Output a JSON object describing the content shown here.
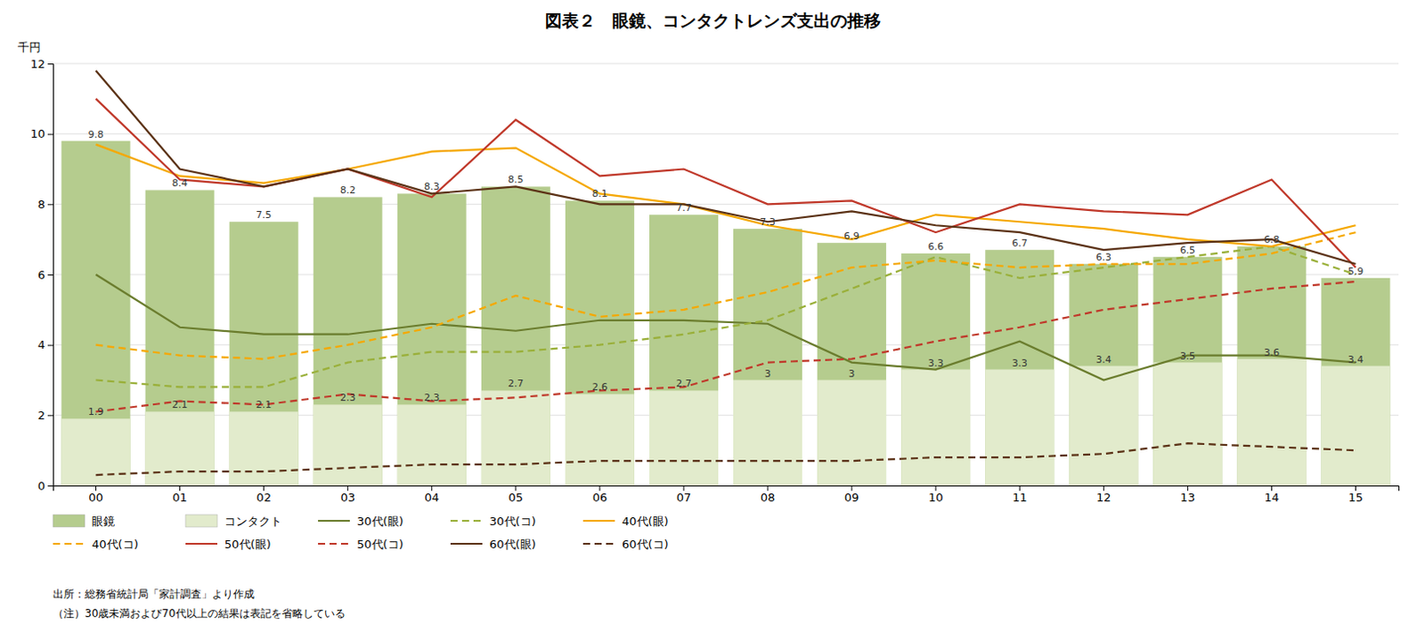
{
  "chart_data": {
    "type": "bar",
    "title": "図表２　眼鏡、コンタクトレンズ支出の推移",
    "y_label": "千円",
    "categories": [
      "00",
      "01",
      "02",
      "03",
      "04",
      "05",
      "06",
      "07",
      "08",
      "09",
      "10",
      "11",
      "12",
      "13",
      "14",
      "15"
    ],
    "series": [
      {
        "name": "眼鏡",
        "type": "bar",
        "color": "#b5cc8e",
        "data_labels": true,
        "values": [
          9.8,
          8.4,
          7.5,
          8.2,
          8.3,
          8.5,
          8.1,
          7.7,
          7.3,
          6.9,
          6.6,
          6.7,
          6.3,
          6.5,
          6.8,
          5.9
        ]
      },
      {
        "name": "コンタクト",
        "type": "bar",
        "color": "#e2ebcc",
        "data_labels": true,
        "values": [
          1.9,
          2.1,
          2.1,
          2.3,
          2.3,
          2.7,
          2.6,
          2.7,
          3.0,
          3.0,
          3.3,
          3.3,
          3.4,
          3.5,
          3.6,
          3.4
        ]
      },
      {
        "name": "30代(眼)",
        "type": "line",
        "color": "#6b7d2e",
        "line_style": "solid",
        "values": [
          6.0,
          4.5,
          4.3,
          4.3,
          4.6,
          4.4,
          4.7,
          4.7,
          4.6,
          3.5,
          3.3,
          4.1,
          3.0,
          3.7,
          3.7,
          3.5
        ]
      },
      {
        "name": "30代(コ)",
        "type": "line",
        "color": "#9ab03a",
        "line_style": "dashed",
        "values": [
          3.0,
          2.8,
          2.8,
          3.5,
          3.8,
          3.8,
          4.0,
          4.3,
          4.7,
          5.6,
          6.5,
          5.9,
          6.2,
          6.5,
          6.8,
          6.0
        ]
      },
      {
        "name": "40代(眼)",
        "type": "line",
        "color": "#f5a800",
        "line_style": "solid",
        "values": [
          9.7,
          8.8,
          8.6,
          9.0,
          9.5,
          9.6,
          8.3,
          8.0,
          7.4,
          7.0,
          7.7,
          7.5,
          7.3,
          7.0,
          6.8,
          7.4
        ]
      },
      {
        "name": "40代(コ)",
        "type": "line",
        "color": "#f5a800",
        "line_style": "dashed",
        "values": [
          4.0,
          3.7,
          3.6,
          4.0,
          4.5,
          5.4,
          4.8,
          5.0,
          5.5,
          6.2,
          6.4,
          6.2,
          6.3,
          6.3,
          6.6,
          7.2
        ]
      },
      {
        "name": "50代(眼)",
        "type": "line",
        "color": "#c0392b",
        "line_style": "solid",
        "values": [
          11.0,
          8.7,
          8.5,
          9.0,
          8.2,
          10.4,
          8.8,
          9.0,
          8.0,
          8.1,
          7.2,
          8.0,
          7.8,
          7.7,
          8.7,
          6.2
        ]
      },
      {
        "name": "50代(コ)",
        "type": "line",
        "color": "#c0392b",
        "line_style": "dashed",
        "values": [
          2.1,
          2.4,
          2.3,
          2.6,
          2.4,
          2.5,
          2.7,
          2.8,
          3.5,
          3.6,
          4.1,
          4.5,
          5.0,
          5.3,
          5.6,
          5.8
        ]
      },
      {
        "name": "60代(眼)",
        "type": "line",
        "color": "#5c3317",
        "line_style": "solid",
        "values": [
          11.8,
          9.0,
          8.5,
          9.0,
          8.3,
          8.5,
          8.0,
          8.0,
          7.5,
          7.8,
          7.4,
          7.2,
          6.7,
          6.9,
          7.0,
          6.3
        ]
      },
      {
        "name": "60代(コ)",
        "type": "line",
        "color": "#5c3317",
        "line_style": "dashed",
        "values": [
          0.3,
          0.4,
          0.4,
          0.5,
          0.6,
          0.6,
          0.7,
          0.7,
          0.7,
          0.7,
          0.8,
          0.8,
          0.9,
          1.2,
          1.1,
          1.0
        ]
      }
    ],
    "ylim": [
      0,
      12
    ],
    "yticks": [
      0,
      2,
      4,
      6,
      8,
      10,
      12
    ],
    "grid": true,
    "legend": "bottom",
    "annotations": [
      "出所：総務省統計局「家計調査」より作成",
      "（注）30歳未満および70代以上の結果は表記を省略している"
    ]
  }
}
